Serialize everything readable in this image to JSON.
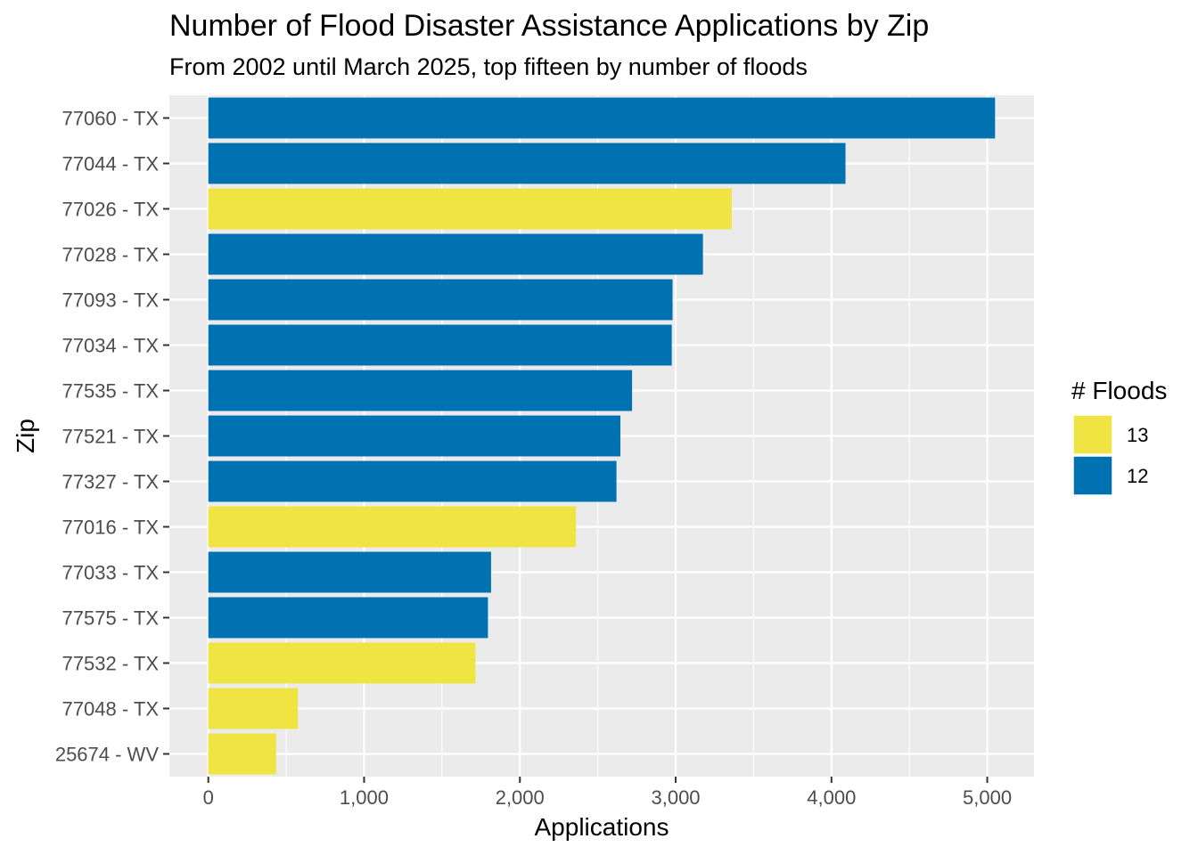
{
  "chart_data": {
    "type": "bar",
    "orientation": "horizontal",
    "title": "Number of Flood Disaster Assistance Applications by Zip",
    "subtitle": "From 2002 until March 2025, top fifteen by number of floods",
    "xlabel": "Applications",
    "ylabel": "Zip",
    "xlim": [
      -250,
      5300
    ],
    "x_ticks": [
      0,
      1000,
      2000,
      3000,
      4000,
      5000
    ],
    "x_tick_labels": [
      "0",
      "1,000",
      "2,000",
      "3,000",
      "4,000",
      "5,000"
    ],
    "grid": true,
    "legend": {
      "title": "# Floods",
      "position": "right",
      "items": [
        {
          "label": "13",
          "color": "#F0E442"
        },
        {
          "label": "12",
          "color": "#0072B2"
        }
      ]
    },
    "categories": [
      "77060 - TX",
      "77044 - TX",
      "77026 - TX",
      "77028 - TX",
      "77093 - TX",
      "77034 - TX",
      "77535 - TX",
      "77521 - TX",
      "77327 - TX",
      "77016 - TX",
      "77033 - TX",
      "77575 - TX",
      "77532 - TX",
      "77048 - TX",
      "25674 - WV"
    ],
    "values": [
      5050,
      4090,
      3360,
      3175,
      2980,
      2975,
      2720,
      2645,
      2620,
      2360,
      1815,
      1795,
      1715,
      575,
      435
    ],
    "floods": [
      "12",
      "12",
      "13",
      "12",
      "12",
      "12",
      "12",
      "12",
      "12",
      "13",
      "12",
      "12",
      "13",
      "13",
      "13"
    ],
    "colors": {
      "13": "#F0E442",
      "12": "#0072B2"
    },
    "panel_background": "#EBEBEB",
    "grid_color": "#FFFFFF"
  }
}
